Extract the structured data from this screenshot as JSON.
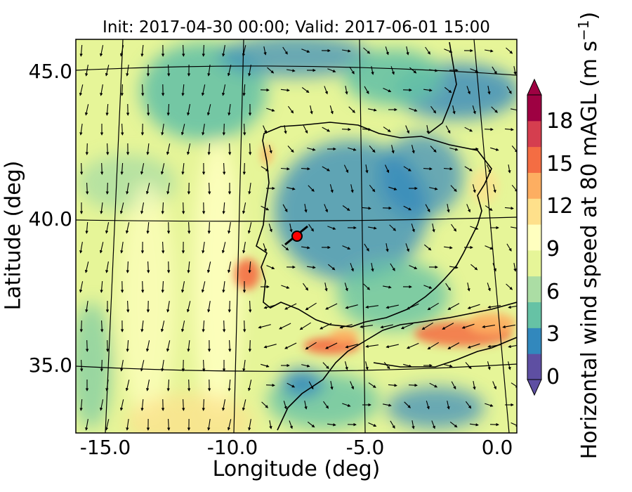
{
  "title": "Init: 2017-04-30 00:00; Valid: 2017-06-01 15:00",
  "x_axis": {
    "label": "Longitude (deg)",
    "ticks": [
      {
        "value": -15,
        "label": "-15.0"
      },
      {
        "value": -10,
        "label": "-10.0"
      },
      {
        "value": -5,
        "label": "-5.0"
      },
      {
        "value": 0,
        "label": "0.0"
      }
    ],
    "range": [
      -16,
      0.1
    ]
  },
  "y_axis": {
    "label": "Latitude (deg)",
    "ticks": [
      {
        "value": 45,
        "label": "45.0"
      },
      {
        "value": 40,
        "label": "40.0"
      },
      {
        "value": 35,
        "label": "35.0"
      }
    ],
    "range": [
      32.7,
      46.1
    ]
  },
  "colorbar": {
    "label_text": "Horizontal wind speed at 80 mAGL (m s",
    "label_sup": "−1",
    "label_close": ")",
    "ticks": [
      {
        "value": 0,
        "label": "0"
      },
      {
        "value": 3,
        "label": "3"
      },
      {
        "value": 6,
        "label": "6"
      },
      {
        "value": 9,
        "label": "9"
      },
      {
        "value": 12,
        "label": "12"
      },
      {
        "value": 15,
        "label": "15"
      },
      {
        "value": 18,
        "label": "18"
      }
    ],
    "range": [
      0,
      20
    ],
    "extend": "both",
    "colors": [
      "#5e4fa2",
      "#3288bd",
      "#66c2a5",
      "#abdda4",
      "#e6f598",
      "#ffffbf",
      "#fee08b",
      "#fdae61",
      "#f46d43",
      "#d53e4f",
      "#9e0142"
    ]
  },
  "marker": {
    "lon": -7.7,
    "lat": 39.35,
    "color": "#ff0000"
  },
  "colors": {
    "background_field": "#e6f598",
    "high_wind": "#f46d43",
    "low_wind": "#3288bd",
    "coast": "#000000",
    "graticule": "#000000"
  }
}
